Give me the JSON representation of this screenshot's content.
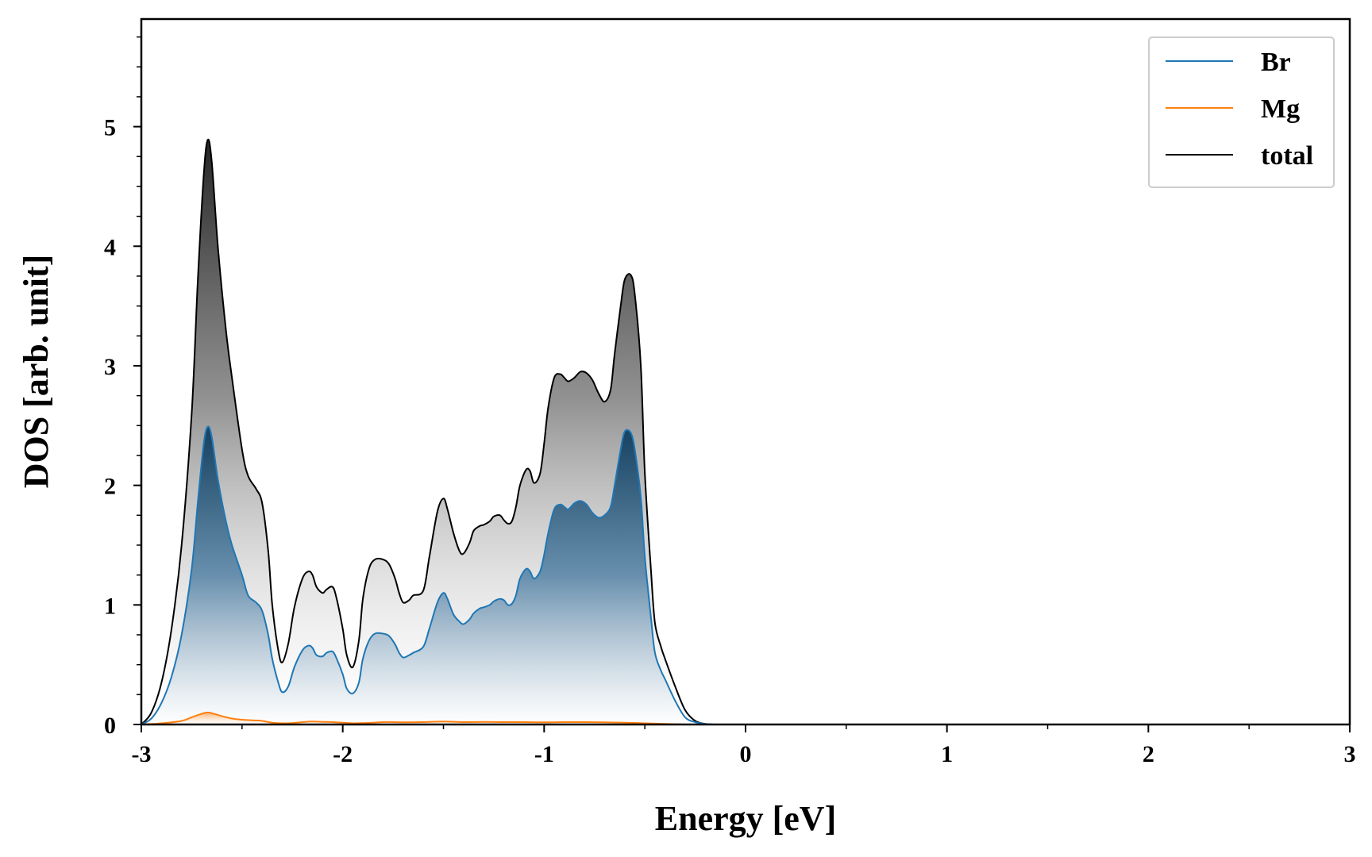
{
  "chart_data": {
    "type": "area",
    "xlabel": "Energy [eV]",
    "ylabel": "DOS [arb. unit]",
    "xlim": [
      -3,
      3
    ],
    "ylim": [
      0,
      5.9
    ],
    "x_ticks": [
      -3,
      -2,
      -1,
      0,
      1,
      2,
      3
    ],
    "x_tick_labels": [
      "-3",
      "-2",
      "-1",
      "0",
      "1",
      "2",
      "3"
    ],
    "y_ticks": [
      0,
      1,
      2,
      3,
      4,
      5
    ],
    "y_tick_labels": [
      "0",
      "1",
      "2",
      "3",
      "4",
      "5"
    ],
    "grid": false,
    "legend_position": "top-right",
    "series": [
      {
        "name": "Br",
        "color": "#1f77b4",
        "x": [
          -3.0,
          -2.95,
          -2.9,
          -2.85,
          -2.8,
          -2.75,
          -2.72,
          -2.69,
          -2.67,
          -2.65,
          -2.62,
          -2.58,
          -2.55,
          -2.5,
          -2.47,
          -2.43,
          -2.4,
          -2.37,
          -2.35,
          -2.32,
          -2.3,
          -2.27,
          -2.24,
          -2.2,
          -2.17,
          -2.15,
          -2.13,
          -2.1,
          -2.08,
          -2.05,
          -2.03,
          -2.0,
          -1.98,
          -1.95,
          -1.92,
          -1.9,
          -1.87,
          -1.84,
          -1.8,
          -1.77,
          -1.74,
          -1.72,
          -1.7,
          -1.67,
          -1.65,
          -1.6,
          -1.57,
          -1.53,
          -1.5,
          -1.48,
          -1.45,
          -1.42,
          -1.4,
          -1.37,
          -1.35,
          -1.32,
          -1.3,
          -1.27,
          -1.25,
          -1.22,
          -1.2,
          -1.18,
          -1.16,
          -1.14,
          -1.12,
          -1.09,
          -1.07,
          -1.05,
          -1.02,
          -1.0,
          -0.98,
          -0.95,
          -0.92,
          -0.9,
          -0.88,
          -0.85,
          -0.82,
          -0.79,
          -0.76,
          -0.73,
          -0.7,
          -0.67,
          -0.65,
          -0.62,
          -0.6,
          -0.57,
          -0.55,
          -0.52,
          -0.5,
          -0.47,
          -0.45,
          -0.42,
          -0.4,
          -0.35,
          -0.3,
          -0.25,
          -0.2,
          -0.15,
          -0.1,
          0.0,
          3.0
        ],
        "y": [
          0.0,
          0.05,
          0.18,
          0.4,
          0.75,
          1.3,
          1.85,
          2.35,
          2.49,
          2.4,
          2.05,
          1.7,
          1.5,
          1.25,
          1.08,
          1.02,
          0.95,
          0.75,
          0.55,
          0.35,
          0.27,
          0.32,
          0.48,
          0.62,
          0.66,
          0.64,
          0.58,
          0.57,
          0.6,
          0.61,
          0.55,
          0.42,
          0.3,
          0.26,
          0.35,
          0.55,
          0.7,
          0.76,
          0.76,
          0.74,
          0.67,
          0.6,
          0.56,
          0.58,
          0.6,
          0.65,
          0.8,
          1.02,
          1.1,
          1.05,
          0.92,
          0.86,
          0.84,
          0.88,
          0.93,
          0.97,
          0.98,
          1.0,
          1.03,
          1.05,
          1.04,
          1.0,
          1.01,
          1.08,
          1.22,
          1.3,
          1.28,
          1.22,
          1.28,
          1.42,
          1.6,
          1.8,
          1.84,
          1.82,
          1.8,
          1.85,
          1.87,
          1.84,
          1.77,
          1.73,
          1.75,
          1.82,
          2.0,
          2.3,
          2.45,
          2.44,
          2.3,
          1.9,
          1.4,
          0.9,
          0.6,
          0.45,
          0.38,
          0.2,
          0.06,
          0.02,
          0.005,
          0.0,
          0.0,
          0.0,
          0.0
        ]
      },
      {
        "name": "Mg",
        "color": "#ff7f0e",
        "x": [
          -3.0,
          -2.9,
          -2.8,
          -2.75,
          -2.7,
          -2.67,
          -2.64,
          -2.6,
          -2.55,
          -2.5,
          -2.45,
          -2.4,
          -2.35,
          -2.3,
          -2.25,
          -2.2,
          -2.15,
          -2.1,
          -2.05,
          -2.0,
          -1.95,
          -1.9,
          -1.85,
          -1.8,
          -1.75,
          -1.7,
          -1.6,
          -1.5,
          -1.4,
          -1.3,
          -1.2,
          -1.1,
          -1.0,
          -0.9,
          -0.8,
          -0.7,
          -0.6,
          -0.5,
          -0.4,
          -0.3,
          -0.2,
          0.0,
          3.0
        ],
        "y": [
          0.0,
          0.01,
          0.03,
          0.06,
          0.09,
          0.1,
          0.09,
          0.07,
          0.05,
          0.04,
          0.035,
          0.03,
          0.015,
          0.01,
          0.012,
          0.02,
          0.025,
          0.022,
          0.02,
          0.015,
          0.01,
          0.012,
          0.015,
          0.02,
          0.02,
          0.018,
          0.02,
          0.025,
          0.02,
          0.022,
          0.02,
          0.02,
          0.018,
          0.02,
          0.02,
          0.018,
          0.015,
          0.01,
          0.005,
          0.0,
          0.0,
          0.0,
          0.0
        ]
      },
      {
        "name": "total",
        "color": "#000000",
        "x": [
          -3.0,
          -2.95,
          -2.9,
          -2.85,
          -2.8,
          -2.75,
          -2.72,
          -2.69,
          -2.67,
          -2.65,
          -2.62,
          -2.58,
          -2.55,
          -2.5,
          -2.47,
          -2.43,
          -2.4,
          -2.37,
          -2.35,
          -2.32,
          -2.3,
          -2.27,
          -2.24,
          -2.2,
          -2.17,
          -2.15,
          -2.13,
          -2.1,
          -2.08,
          -2.05,
          -2.03,
          -2.0,
          -1.98,
          -1.95,
          -1.92,
          -1.9,
          -1.87,
          -1.84,
          -1.8,
          -1.77,
          -1.74,
          -1.72,
          -1.7,
          -1.67,
          -1.65,
          -1.6,
          -1.57,
          -1.53,
          -1.5,
          -1.48,
          -1.45,
          -1.42,
          -1.4,
          -1.37,
          -1.35,
          -1.32,
          -1.3,
          -1.27,
          -1.25,
          -1.22,
          -1.2,
          -1.18,
          -1.16,
          -1.14,
          -1.12,
          -1.09,
          -1.07,
          -1.05,
          -1.02,
          -1.0,
          -0.98,
          -0.95,
          -0.92,
          -0.9,
          -0.88,
          -0.85,
          -0.82,
          -0.79,
          -0.76,
          -0.73,
          -0.7,
          -0.67,
          -0.65,
          -0.62,
          -0.6,
          -0.57,
          -0.55,
          -0.52,
          -0.5,
          -0.47,
          -0.45,
          -0.42,
          -0.4,
          -0.35,
          -0.3,
          -0.25,
          -0.2,
          -0.15,
          -0.1,
          0.0,
          3.0
        ],
        "y": [
          0.0,
          0.1,
          0.35,
          0.8,
          1.5,
          2.6,
          3.7,
          4.6,
          4.89,
          4.7,
          4.0,
          3.3,
          2.9,
          2.3,
          2.08,
          1.97,
          1.85,
          1.45,
          1.0,
          0.62,
          0.52,
          0.68,
          0.98,
          1.22,
          1.28,
          1.25,
          1.15,
          1.1,
          1.13,
          1.15,
          1.05,
          0.8,
          0.58,
          0.48,
          0.7,
          1.05,
          1.3,
          1.38,
          1.38,
          1.34,
          1.22,
          1.1,
          1.02,
          1.04,
          1.08,
          1.12,
          1.4,
          1.78,
          1.89,
          1.8,
          1.6,
          1.45,
          1.43,
          1.52,
          1.62,
          1.66,
          1.67,
          1.7,
          1.74,
          1.75,
          1.71,
          1.68,
          1.7,
          1.82,
          2.0,
          2.13,
          2.12,
          2.02,
          2.1,
          2.35,
          2.65,
          2.9,
          2.93,
          2.9,
          2.87,
          2.9,
          2.95,
          2.94,
          2.88,
          2.77,
          2.7,
          2.8,
          3.1,
          3.5,
          3.72,
          3.76,
          3.6,
          3.0,
          2.1,
          1.3,
          0.85,
          0.65,
          0.55,
          0.32,
          0.12,
          0.03,
          0.005,
          0.0,
          0.0,
          0.0,
          0.0
        ]
      }
    ]
  }
}
